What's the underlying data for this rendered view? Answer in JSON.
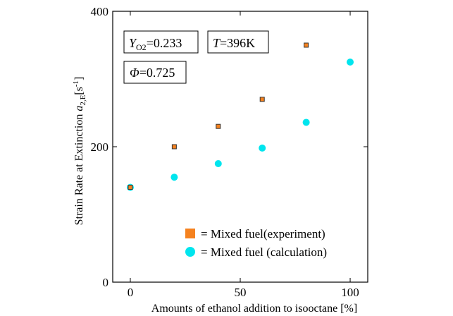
{
  "chart_data": {
    "type": "scatter",
    "xlabel": "Amounts of ethanol addition to isooctane [%]",
    "ylabel_main": "Strain Rate at Extinction ",
    "ylabel_var": "a",
    "ylabel_sub": "2,E",
    "ylabel_unit_open": "[s",
    "ylabel_unit_sup": "-1",
    "ylabel_unit_close": "]",
    "xlim": [
      -8,
      108
    ],
    "ylim": [
      0,
      400
    ],
    "x_ticks": [
      0,
      50,
      100
    ],
    "y_ticks": [
      0,
      200,
      400
    ],
    "x_tick_labels": [
      "0",
      "50",
      "100"
    ],
    "y_tick_labels": [
      "0",
      "200",
      "400"
    ],
    "grid": false,
    "legend_position": "bottom-right",
    "series": [
      {
        "name": "Mixed fuel(experiment)",
        "marker": "square",
        "color": "#f5821f",
        "edge_color": "#333333",
        "x": [
          0,
          20,
          40,
          60,
          80
        ],
        "y": [
          140,
          200,
          230,
          270,
          350
        ]
      },
      {
        "name": "Mixed fuel (calculation)",
        "marker": "circle",
        "color": "#00e5ee",
        "x": [
          0,
          20,
          40,
          60,
          80,
          100
        ],
        "y": [
          140,
          155,
          175,
          198,
          236,
          325
        ]
      }
    ],
    "legend_prefix": "= ",
    "annotations": {
      "y_o2": {
        "var": "Y",
        "sub": "O2",
        "value": "=0.233"
      },
      "temperature": {
        "var": "T",
        "value": "=396K"
      },
      "phi": {
        "var": "Φ",
        "value": "=0.725"
      }
    }
  }
}
